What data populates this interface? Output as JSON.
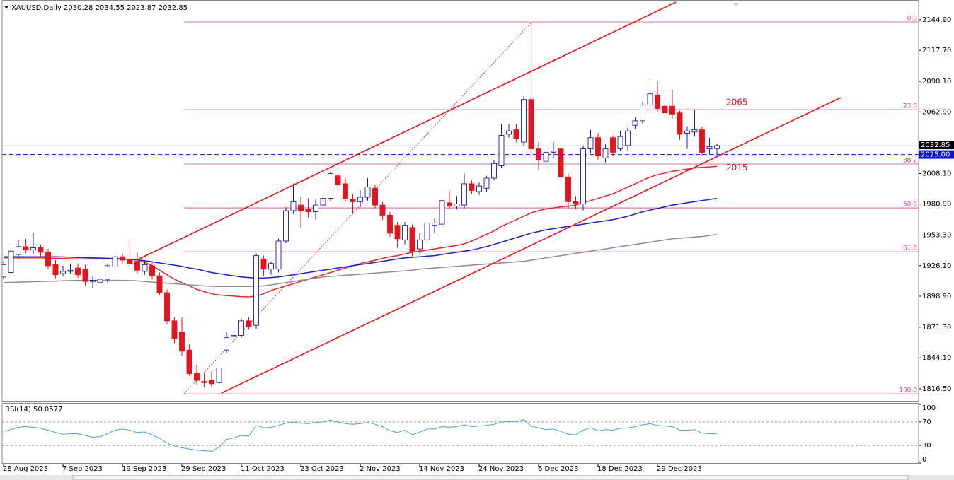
{
  "chart_data": {
    "type": "candlestick",
    "title": "XAUUSD,Daily",
    "categories": [
      "28 Aug 2023",
      null,
      null,
      null,
      null,
      null,
      null,
      null,
      "7 Sep 2023",
      null,
      null,
      null,
      null,
      null,
      null,
      null,
      "19 Sep 2023",
      null,
      null,
      null,
      null,
      null,
      null,
      null,
      "29 Sep 2023",
      null,
      null,
      null,
      null,
      null,
      null,
      null,
      "11 Oct 2023",
      null,
      null,
      null,
      null,
      null,
      null,
      null,
      "23 Oct 2023",
      null,
      null,
      null,
      null,
      null,
      null,
      null,
      "2 Nov 2023",
      null,
      null,
      null,
      null,
      null,
      null,
      null,
      "14 Nov 2023",
      null,
      null,
      null,
      null,
      null,
      null,
      null,
      "24 Nov 2023",
      null,
      null,
      null,
      null,
      null,
      null,
      null,
      "6 Dec 2023",
      null,
      null,
      null,
      null,
      null,
      null,
      null,
      "18 Dec 2023",
      null,
      null,
      null,
      null,
      null,
      null,
      null,
      "29 Dec 2023",
      null,
      null,
      null,
      null,
      null,
      null,
      null,
      null
    ],
    "open": [
      1916,
      1920,
      1936,
      1943,
      1940,
      1942,
      1938,
      1927,
      1919,
      1921,
      1924,
      1923,
      1912,
      1911,
      1914,
      1925,
      1934,
      1932,
      1930,
      1921,
      1926,
      1917,
      1902,
      1877,
      1867,
      1851,
      1830,
      1823,
      1824,
      1822,
      1851,
      1863,
      1864,
      1877,
      1873,
      1932,
      1923,
      1923,
      1948,
      1975,
      1980,
      1976,
      1974,
      1980,
      1986,
      2006,
      1999,
      1985,
      1983,
      1987,
      1995,
      1980,
      1971,
      1962,
      1949,
      1960,
      1941,
      1949,
      1962,
      1963,
      1982,
      1979,
      1980,
      1999,
      1992,
      1995,
      2004,
      2015,
      2043,
      2047,
      2036,
      2074,
      2030,
      2019,
      2027,
      2030,
      2005,
      1983,
      1981,
      2030,
      2040,
      2022,
      2040,
      2030,
      2033,
      2051,
      2055,
      2069,
      2078,
      2068,
      2068,
      2062,
      2044,
      2045,
      2047,
      2030,
      2030.28
    ],
    "high": [
      1930,
      1943,
      1949,
      1950,
      1955,
      1945,
      1941,
      1931,
      1926,
      1928,
      1928,
      1927,
      1917,
      1920,
      1928,
      1937,
      1937,
      1950,
      1938,
      1930,
      1929,
      1920,
      1905,
      1880,
      1880,
      1856,
      1838,
      1830,
      1832,
      1837,
      1867,
      1870,
      1879,
      1880,
      1937,
      1935,
      1930,
      1950,
      1978,
      1999,
      1987,
      1986,
      1985,
      1990,
      2010,
      2008,
      2004,
      1990,
      1993,
      2004,
      1998,
      1983,
      1974,
      1965,
      1965,
      1963,
      1955,
      1966,
      1968,
      1986,
      1993,
      1988,
      2008,
      2002,
      2000,
      2006,
      2020,
      2052,
      2052,
      2052,
      2077,
      2143,
      2036,
      2030,
      2036,
      2032,
      2008,
      1988,
      2033,
      2047,
      2044,
      2034,
      2042,
      2046,
      2049,
      2058,
      2072,
      2088,
      2090,
      2072,
      2082,
      2064,
      2050,
      2065,
      2050,
      2040,
      2034.55
    ],
    "low": [
      1914,
      1917,
      1933,
      1937,
      1936,
      1934,
      1923,
      1915,
      1917,
      1919,
      1915,
      1908,
      1906,
      1908,
      1911,
      1922,
      1928,
      1925,
      1919,
      1918,
      1914,
      1900,
      1874,
      1857,
      1846,
      1828,
      1820,
      1818,
      1818,
      1812,
      1848,
      1857,
      1862,
      1869,
      1870,
      1917,
      1918,
      1920,
      1946,
      1972,
      1960,
      1969,
      1967,
      1977,
      1983,
      1993,
      1983,
      1972,
      1978,
      1984,
      1977,
      1967,
      1952,
      1942,
      1945,
      1933,
      1937,
      1946,
      1955,
      1958,
      1976,
      1976,
      1977,
      1990,
      1989,
      1992,
      2002,
      2013,
      2040,
      2036,
      2033,
      2023,
      2011,
      2013,
      2022,
      2000,
      1977,
      1976,
      1975,
      2026,
      2020,
      2018,
      2024,
      2028,
      2028,
      2048,
      2052,
      2066,
      2063,
      2058,
      2057,
      2038,
      2030,
      2041,
      2024,
      2025,
      2023.87
    ],
    "close": [
      1927,
      1939,
      1943,
      1940,
      1942,
      1938,
      1926,
      1918,
      1921,
      1922,
      1918,
      1912,
      1913,
      1914,
      1926,
      1934,
      1931,
      1928,
      1922,
      1927,
      1917,
      1902,
      1877,
      1861,
      1850,
      1830,
      1824,
      1822,
      1821,
      1835,
      1862,
      1864,
      1877,
      1872,
      1935,
      1923,
      1928,
      1948,
      1975,
      1983,
      1975,
      1974,
      1980,
      1986,
      2008,
      1998,
      1986,
      1983,
      1987,
      1996,
      1980,
      1971,
      1955,
      1950,
      1962,
      1939,
      1949,
      1964,
      1964,
      1984,
      1979,
      1981,
      1999,
      1993,
      1997,
      2004,
      2017,
      2042,
      2046,
      2039,
      2074,
      2030,
      2020,
      2027,
      2028,
      2005,
      1983,
      1981,
      2030,
      2040,
      2024,
      2030,
      2027,
      2041,
      2046,
      2055,
      2069,
      2079,
      2066,
      2062,
      2061,
      2043,
      2046,
      2047,
      2027,
      2032,
      2032.85
    ],
    "up_color": "#1c1ca6",
    "down_color": "#e3141c",
    "ylim": [
      1805.8,
      2162.5
    ],
    "yticks": [
      {
        "value": 2144.9,
        "label": "2144.90"
      },
      {
        "value": 2117.7,
        "label": "2117.70"
      },
      {
        "value": 2090.1,
        "label": "2090.10"
      },
      {
        "value": 2062.9,
        "label": "2062.90"
      },
      {
        "value": 2008.1,
        "label": "2008.10"
      },
      {
        "value": 1980.9,
        "label": "1980.90"
      },
      {
        "value": 1953.3,
        "label": "1953.30"
      },
      {
        "value": 1926.1,
        "label": "1926.10"
      },
      {
        "value": 1898.9,
        "label": "1898.90"
      },
      {
        "value": 1871.3,
        "label": "1871.30"
      },
      {
        "value": 1844.1,
        "label": "1844.10"
      },
      {
        "value": 1816.5,
        "label": "1816.50"
      }
    ],
    "overlays": [
      {
        "color": "#e8262a",
        "values": [
          1933,
          1933,
          1933,
          1933,
          1933,
          1933,
          1932.8,
          1932.6,
          1932.4,
          1932.2,
          1932,
          1932,
          1932,
          1932,
          1932,
          1932,
          1932,
          1931.8,
          1931.6,
          1929,
          1926,
          1922,
          1918,
          1914,
          1911,
          1908,
          1905,
          1903,
          1901,
          1900,
          1899.5,
          1899,
          1898.5,
          1898.3,
          1899,
          1901,
          1904,
          1906,
          1908,
          1910,
          1912,
          1914,
          1916,
          1918,
          1920,
          1922,
          1924,
          1926,
          1928,
          1929.5,
          1931,
          1932.5,
          1934,
          1935,
          1936.5,
          1938,
          1939,
          1940,
          1941,
          1942,
          1943,
          1944,
          1945.5,
          1948,
          1951,
          1954,
          1957,
          1961,
          1964,
          1967,
          1970,
          1973,
          1975,
          1976.5,
          1977.5,
          1978.5,
          1979,
          1980,
          1982,
          1984,
          1986,
          1988,
          1990,
          1993,
          1996,
          1999,
          2002,
          2005,
          2007,
          2008.5,
          2010,
          2011,
          2012,
          2013,
          2013.5,
          2014,
          2014.5
        ]
      },
      {
        "color": "#1f1fc8",
        "values": [
          1934,
          1934,
          1934,
          1934,
          1934,
          1934,
          1934,
          1934,
          1933.8,
          1933.6,
          1933.4,
          1933.2,
          1933,
          1932.8,
          1932.6,
          1932.4,
          1932,
          1931.6,
          1931.2,
          1930.5,
          1929.5,
          1928.5,
          1927.5,
          1926.5,
          1925.5,
          1924,
          1923,
          1921.5,
          1920,
          1919,
          1918,
          1917,
          1916,
          1915.5,
          1915,
          1915,
          1915.5,
          1916,
          1917,
          1918,
          1919,
          1920,
          1921,
          1922,
          1923,
          1924,
          1925,
          1926,
          1927,
          1928,
          1929,
          1930,
          1931,
          1932,
          1933,
          1933.5,
          1934,
          1934.5,
          1935,
          1936,
          1937,
          1938,
          1939,
          1940,
          1941.5,
          1943,
          1945,
          1947,
          1949,
          1951,
          1953,
          1955,
          1956.5,
          1958,
          1959,
          1960,
          1961,
          1962,
          1963,
          1964,
          1965,
          1966,
          1967,
          1968.5,
          1970,
          1972,
          1974,
          1975.5,
          1977,
          1978.5,
          1980,
          1981,
          1982,
          1983,
          1984,
          1985,
          1986
        ]
      },
      {
        "color": "#8c8c8c",
        "values": [
          1911,
          1911.2,
          1911.4,
          1911.6,
          1911.8,
          1912,
          1912.2,
          1912.4,
          1912.6,
          1912.8,
          1913,
          1913,
          1913,
          1913,
          1913,
          1913,
          1913,
          1912.8,
          1912.5,
          1912,
          1911.5,
          1911,
          1910.5,
          1910,
          1909.5,
          1909,
          1908.5,
          1908,
          1907.8,
          1907.6,
          1907.5,
          1907.5,
          1907.5,
          1907.6,
          1907.8,
          1908,
          1909,
          1910,
          1911,
          1912,
          1913,
          1914,
          1915,
          1916,
          1916.5,
          1917,
          1917.5,
          1918,
          1918.5,
          1919,
          1919.5,
          1920,
          1920.5,
          1921,
          1921.5,
          1922,
          1923,
          1923.5,
          1924,
          1924.5,
          1925,
          1925.5,
          1926,
          1926.5,
          1927,
          1927.5,
          1928,
          1928.5,
          1929,
          1929.5,
          1930,
          1931,
          1932,
          1933,
          1934,
          1935,
          1936,
          1937,
          1938,
          1939,
          1940,
          1941,
          1942,
          1943,
          1944,
          1945,
          1946,
          1947,
          1948,
          1949,
          1950,
          1950.5,
          1951,
          1951.5,
          1952,
          1953,
          1953.7
        ]
      }
    ],
    "fib": {
      "high": 2143,
      "low": 1812,
      "color": "#d0408c",
      "levels": [
        {
          "value": 0,
          "label": "0.0"
        },
        23.6,
        38.2,
        {
          "value": 50,
          "label": "50.0"
        },
        61.8,
        {
          "value": 100,
          "label": "100.0"
        }
      ]
    },
    "price_lines": [
      {
        "value": 2025,
        "label": "2025.00",
        "color": "#0a14d2"
      }
    ],
    "annotations": [
      {
        "value": 2065,
        "color": "#e3141c"
      },
      {
        "value": 2015,
        "color": "#e3141c"
      }
    ],
    "rsi": {
      "title": "RSI(14)",
      "color": "#4aa3df",
      "ylim": [
        0,
        100
      ],
      "yticks": [
        100,
        70,
        30,
        0
      ],
      "levels": [
        70,
        30
      ],
      "values": [
        54,
        57,
        61,
        62,
        61,
        59,
        56,
        52,
        49,
        50,
        50,
        47,
        44,
        45,
        50,
        56,
        58,
        56,
        52,
        53,
        48,
        42,
        34,
        29,
        26,
        24,
        22,
        21,
        20,
        27,
        40,
        43,
        47,
        46,
        64,
        60,
        61,
        64,
        68,
        70,
        68,
        67,
        69,
        70,
        73,
        70,
        67,
        66,
        67,
        69,
        66,
        62,
        55,
        52,
        56,
        48,
        53,
        58,
        58,
        62,
        61,
        62,
        65,
        62,
        63,
        64,
        66,
        70,
        71,
        70,
        74,
        63,
        60,
        57,
        58,
        54,
        49,
        48,
        56,
        60,
        55,
        57,
        56,
        59,
        60,
        62,
        65,
        67,
        64,
        63,
        62,
        56,
        56,
        57,
        51,
        50,
        50.0577
      ]
    }
  }
}
